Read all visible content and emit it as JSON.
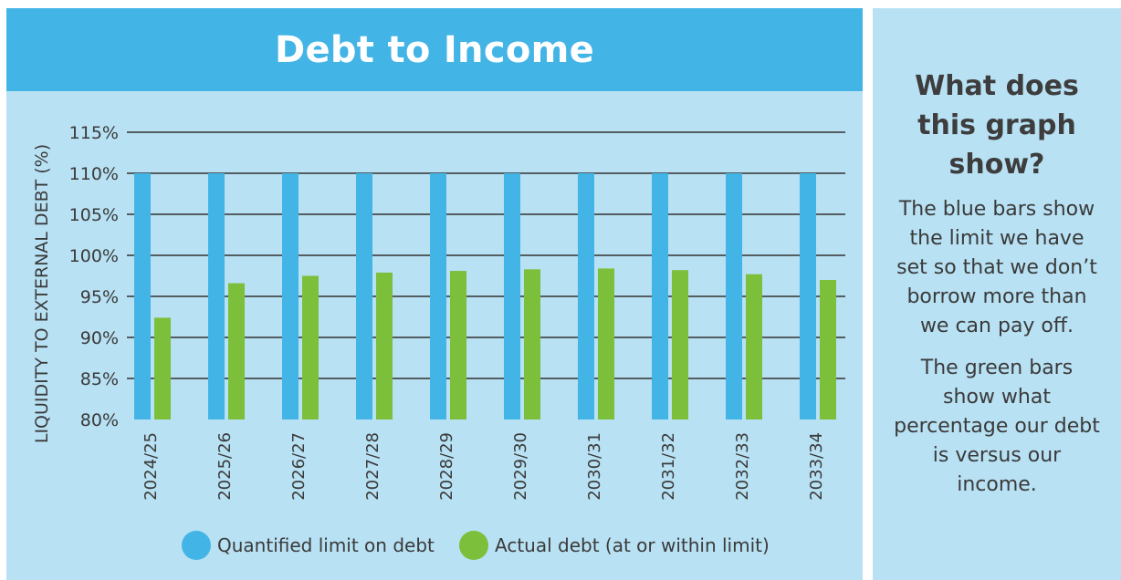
{
  "chart_data": {
    "type": "bar",
    "title": "Debt to Income",
    "ylabel": "LIQUIDITY TO EXTERNAL DEBT (%)",
    "xlabel": "",
    "ylim": [
      80,
      115
    ],
    "yticks": [
      "80%",
      "85%",
      "90%",
      "95%",
      "100%",
      "105%",
      "110%",
      "115%"
    ],
    "categories": [
      "2024/25",
      "2025/26",
      "2026/27",
      "2027/28",
      "2028/29",
      "2029/30",
      "2030/31",
      "2031/32",
      "2032/33",
      "2033/34"
    ],
    "series": [
      {
        "name": "Quantified limit on debt",
        "color": "#43b4e6",
        "values": [
          110,
          110,
          110,
          110,
          110,
          110,
          110,
          110,
          110,
          110
        ]
      },
      {
        "name": "Actual debt (at or within limit)",
        "color": "#7bbf3a",
        "values": [
          92.4,
          96.6,
          97.5,
          97.9,
          98.1,
          98.3,
          98.4,
          98.2,
          97.7,
          97.0
        ]
      }
    ],
    "grid": true,
    "legend": "bottom-center"
  },
  "info": {
    "heading": "What does this graph show?",
    "paragraph1": "The blue bars show the limit we have set so that we don’t borrow more than we can pay off.",
    "paragraph2": "The green bars show what percentage our debt is versus our income."
  }
}
